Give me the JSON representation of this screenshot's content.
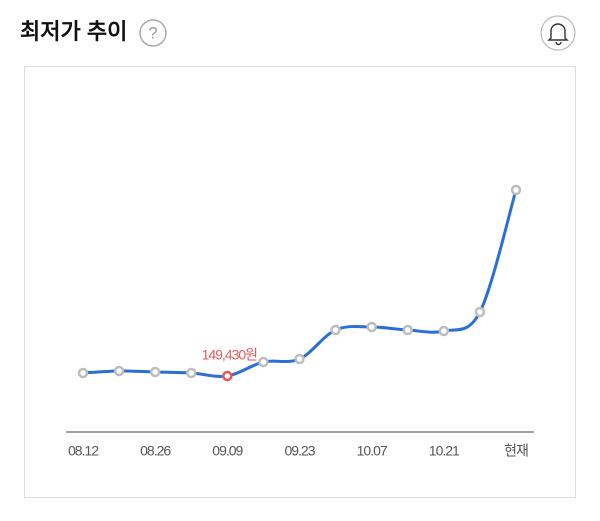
{
  "chart_data": {
    "type": "line",
    "title": "최저가 추이",
    "help": "?",
    "categories": [
      "08.12",
      null,
      "08.26",
      null,
      "09.09",
      null,
      "09.23",
      null,
      "10.07",
      null,
      "10.21",
      null,
      "현재"
    ],
    "values": [
      150030,
      150430,
      150230,
      150030,
      149430,
      152230,
      152830,
      158630,
      159230,
      158630,
      158430,
      162230,
      186630
    ],
    "value_labels": [
      null,
      null,
      null,
      null,
      "149,430원",
      null,
      null,
      null,
      null,
      null,
      null,
      null,
      null
    ],
    "color": "#2a6fd6",
    "marker_color": "#bdbdbd",
    "label_color": "#e05a5a"
  }
}
